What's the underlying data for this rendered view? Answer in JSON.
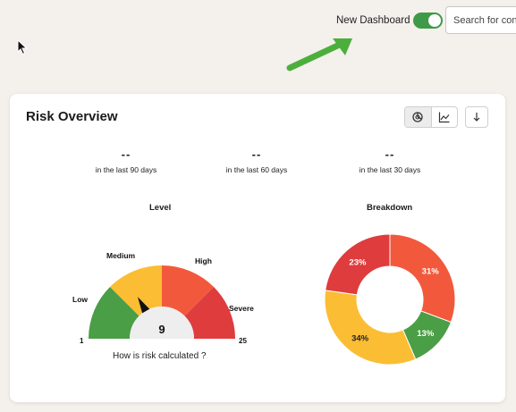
{
  "header": {
    "toggle_label": "New Dashboard",
    "toggle_on": true,
    "search_placeholder": "Search for cont"
  },
  "card": {
    "title": "Risk Overview",
    "stats": [
      {
        "value": "--",
        "label": "in the last 90 days"
      },
      {
        "value": "--",
        "label": "in the last 60 days"
      },
      {
        "value": "--",
        "label": "in the last 30 days"
      }
    ]
  },
  "colors": {
    "low": "#4a9e45",
    "medium": "#fbbd33",
    "high": "#f2593c",
    "severe": "#df3c3e",
    "toggle": "#3f9a47",
    "arrow": "#4caf3c"
  },
  "chart_data": [
    {
      "type": "gauge",
      "title": "Level",
      "min": 1,
      "max": 25,
      "min_label": "1",
      "max_label": "25",
      "value": 9,
      "value_label": "9",
      "segments": [
        {
          "name": "Low",
          "color": "#4a9e45"
        },
        {
          "name": "Medium",
          "color": "#fbbd33"
        },
        {
          "name": "High",
          "color": "#f2593c"
        },
        {
          "name": "Severe",
          "color": "#df3c3e"
        }
      ]
    },
    {
      "type": "pie",
      "title": "Breakdown",
      "slices": [
        {
          "value": 31,
          "label": "31%",
          "color": "#f2593c"
        },
        {
          "value": 13,
          "label": "13%",
          "color": "#4a9e45"
        },
        {
          "value": 34,
          "label": "34%",
          "color": "#fbbd33"
        },
        {
          "value": 23,
          "label": "23%",
          "color": "#df3c3e"
        }
      ]
    }
  ],
  "footer": {
    "link": "How is risk calculated ?"
  }
}
